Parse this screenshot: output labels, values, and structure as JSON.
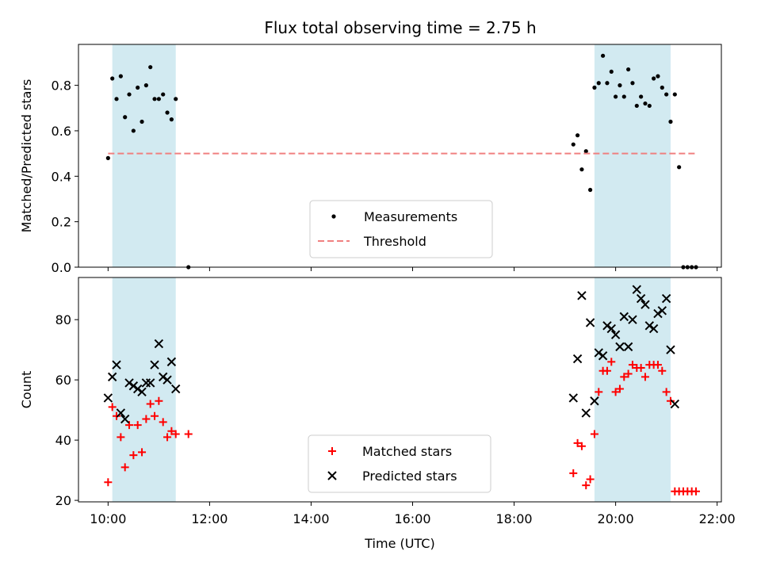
{
  "title": "Flux total observing time = 2.75 h",
  "colors": {
    "band": "#add8e6",
    "measurement": "#000000",
    "threshold": "#f08080",
    "matched": "#ff0000",
    "predicted": "#000000"
  },
  "chart_data": [
    {
      "type": "scatter",
      "ylabel": "Matched/Predicted stars",
      "ylim": [
        0,
        0.98
      ],
      "yticks": [
        "0.0",
        "0.2",
        "0.4",
        "0.6",
        "0.8"
      ],
      "ytick_values": [
        0,
        0.2,
        0.4,
        0.6,
        0.8
      ],
      "shaded_intervals": [
        [
          "10:05",
          "11:20"
        ],
        [
          "19:35",
          "21:05"
        ]
      ],
      "legend": "lower center",
      "series": [
        {
          "name": "Measurements",
          "marker": "dot",
          "points": [
            [
              "10:00",
              0.48
            ],
            [
              "10:05",
              0.83
            ],
            [
              "10:10",
              0.74
            ],
            [
              "10:15",
              0.84
            ],
            [
              "10:20",
              0.66
            ],
            [
              "10:25",
              0.76
            ],
            [
              "10:30",
              0.6
            ],
            [
              "10:35",
              0.79
            ],
            [
              "10:40",
              0.64
            ],
            [
              "10:45",
              0.8
            ],
            [
              "10:50",
              0.88
            ],
            [
              "10:55",
              0.74
            ],
            [
              "11:00",
              0.74
            ],
            [
              "11:05",
              0.76
            ],
            [
              "11:10",
              0.68
            ],
            [
              "11:15",
              0.65
            ],
            [
              "11:20",
              0.74
            ],
            [
              "11:35",
              0.0
            ],
            [
              "19:10",
              0.54
            ],
            [
              "19:15",
              0.58
            ],
            [
              "19:20",
              0.43
            ],
            [
              "19:25",
              0.51
            ],
            [
              "19:30",
              0.34
            ],
            [
              "19:35",
              0.79
            ],
            [
              "19:40",
              0.81
            ],
            [
              "19:45",
              0.93
            ],
            [
              "19:50",
              0.81
            ],
            [
              "19:55",
              0.86
            ],
            [
              "20:00",
              0.75
            ],
            [
              "20:05",
              0.8
            ],
            [
              "20:10",
              0.75
            ],
            [
              "20:15",
              0.87
            ],
            [
              "20:20",
              0.81
            ],
            [
              "20:25",
              0.71
            ],
            [
              "20:30",
              0.75
            ],
            [
              "20:35",
              0.72
            ],
            [
              "20:40",
              0.71
            ],
            [
              "20:45",
              0.83
            ],
            [
              "20:50",
              0.84
            ],
            [
              "20:55",
              0.79
            ],
            [
              "21:00",
              0.76
            ],
            [
              "21:05",
              0.64
            ],
            [
              "21:10",
              0.76
            ],
            [
              "21:15",
              0.44
            ],
            [
              "21:20",
              0.0
            ],
            [
              "21:25",
              0.0
            ],
            [
              "21:30",
              0.0
            ],
            [
              "21:35",
              0.0
            ]
          ]
        },
        {
          "name": "Threshold",
          "marker": "dashed-line",
          "points": [
            [
              "10:00",
              0.5
            ],
            [
              "21:35",
              0.5
            ]
          ]
        }
      ]
    },
    {
      "type": "scatter",
      "xlabel": "Time (UTC)",
      "ylabel": "Count",
      "ylim": [
        19.5,
        94
      ],
      "yticks": [
        "20",
        "40",
        "60",
        "80"
      ],
      "ytick_values": [
        20,
        40,
        60,
        80
      ],
      "xticks": [
        "10:00",
        "12:00",
        "14:00",
        "16:00",
        "18:00",
        "20:00",
        "22:00"
      ],
      "xlim": [
        "09:25",
        "22:05"
      ],
      "shaded_intervals": [
        [
          "10:05",
          "11:20"
        ],
        [
          "19:35",
          "21:05"
        ]
      ],
      "legend": "lower center",
      "series": [
        {
          "name": "Matched stars",
          "marker": "plus",
          "points": [
            [
              "10:00",
              26
            ],
            [
              "10:05",
              51
            ],
            [
              "10:10",
              48
            ],
            [
              "10:15",
              41
            ],
            [
              "10:20",
              31
            ],
            [
              "10:25",
              45
            ],
            [
              "10:30",
              35
            ],
            [
              "10:35",
              45
            ],
            [
              "10:40",
              36
            ],
            [
              "10:45",
              47
            ],
            [
              "10:50",
              52
            ],
            [
              "10:55",
              48
            ],
            [
              "11:00",
              53
            ],
            [
              "11:05",
              46
            ],
            [
              "11:10",
              41
            ],
            [
              "11:15",
              43
            ],
            [
              "11:20",
              42
            ],
            [
              "11:35",
              42
            ],
            [
              "19:10",
              29
            ],
            [
              "19:15",
              39
            ],
            [
              "19:20",
              38
            ],
            [
              "19:25",
              25
            ],
            [
              "19:30",
              27
            ],
            [
              "19:35",
              42
            ],
            [
              "19:40",
              56
            ],
            [
              "19:45",
              63
            ],
            [
              "19:50",
              63
            ],
            [
              "19:55",
              66
            ],
            [
              "20:00",
              56
            ],
            [
              "20:05",
              57
            ],
            [
              "20:10",
              61
            ],
            [
              "20:15",
              62
            ],
            [
              "20:20",
              65
            ],
            [
              "20:25",
              64
            ],
            [
              "20:30",
              64
            ],
            [
              "20:35",
              61
            ],
            [
              "20:40",
              65
            ],
            [
              "20:45",
              65
            ],
            [
              "20:50",
              65
            ],
            [
              "20:55",
              63
            ],
            [
              "21:00",
              56
            ],
            [
              "21:05",
              53
            ],
            [
              "21:10",
              23
            ],
            [
              "21:15",
              23
            ],
            [
              "21:20",
              23
            ],
            [
              "21:25",
              23
            ],
            [
              "21:30",
              23
            ],
            [
              "21:35",
              23
            ]
          ]
        },
        {
          "name": "Predicted stars",
          "marker": "x",
          "points": [
            [
              "10:00",
              54
            ],
            [
              "10:05",
              61
            ],
            [
              "10:10",
              65
            ],
            [
              "10:15",
              49
            ],
            [
              "10:20",
              47
            ],
            [
              "10:25",
              59
            ],
            [
              "10:30",
              58
            ],
            [
              "10:35",
              57
            ],
            [
              "10:40",
              56
            ],
            [
              "10:45",
              59
            ],
            [
              "10:50",
              59
            ],
            [
              "10:55",
              65
            ],
            [
              "11:00",
              72
            ],
            [
              "11:05",
              61
            ],
            [
              "11:10",
              60
            ],
            [
              "11:15",
              66
            ],
            [
              "11:20",
              57
            ],
            [
              "19:10",
              54
            ],
            [
              "19:15",
              67
            ],
            [
              "19:20",
              88
            ],
            [
              "19:25",
              49
            ],
            [
              "19:30",
              79
            ],
            [
              "19:35",
              53
            ],
            [
              "19:40",
              69
            ],
            [
              "19:45",
              68
            ],
            [
              "19:50",
              78
            ],
            [
              "19:55",
              77
            ],
            [
              "20:00",
              75
            ],
            [
              "20:05",
              71
            ],
            [
              "20:10",
              81
            ],
            [
              "20:15",
              71
            ],
            [
              "20:20",
              80
            ],
            [
              "20:25",
              90
            ],
            [
              "20:30",
              87
            ],
            [
              "20:35",
              85
            ],
            [
              "20:40",
              78
            ],
            [
              "20:45",
              77
            ],
            [
              "20:50",
              82
            ],
            [
              "20:55",
              83
            ],
            [
              "21:00",
              87
            ],
            [
              "21:05",
              70
            ],
            [
              "21:10",
              52
            ]
          ]
        }
      ]
    }
  ]
}
